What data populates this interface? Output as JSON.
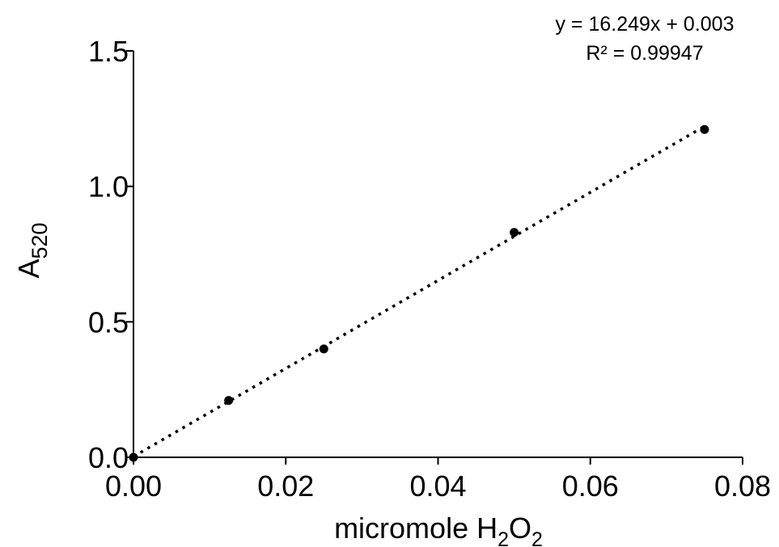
{
  "chart_data": {
    "type": "scatter",
    "title": "",
    "xlabel": {
      "main": "micromole H",
      "sub1": "2",
      "mid": "O",
      "sub2": "2"
    },
    "ylabel": {
      "main": "A",
      "sub": "520"
    },
    "xlim": [
      0,
      0.08
    ],
    "ylim": [
      0,
      1.5
    ],
    "x_ticks": [
      0,
      0.02,
      0.04,
      0.06,
      0.08
    ],
    "x_tick_labels": [
      "0.00",
      "0.02",
      "0.04",
      "0.06",
      "0.08"
    ],
    "y_ticks": [
      0,
      0.5,
      1.0,
      1.5
    ],
    "y_tick_labels": [
      "0.0",
      "0.5",
      "1.0",
      "1.5"
    ],
    "grid": false,
    "series": [
      {
        "x": [
          0,
          0.0125,
          0.025,
          0.05,
          0.075
        ],
        "y": [
          0.0,
          0.21,
          0.4,
          0.83,
          1.21
        ],
        "marker": "filled-circle",
        "color": "#000000"
      }
    ],
    "trendline": {
      "style": "dotted",
      "slope": 16.249,
      "intercept": 0.003,
      "x_range": [
        0,
        0.075
      ],
      "color": "#000000"
    },
    "annotations": {
      "equation": "y = 16.249x + 0.003",
      "r_squared": "R² = 0.99947"
    }
  }
}
